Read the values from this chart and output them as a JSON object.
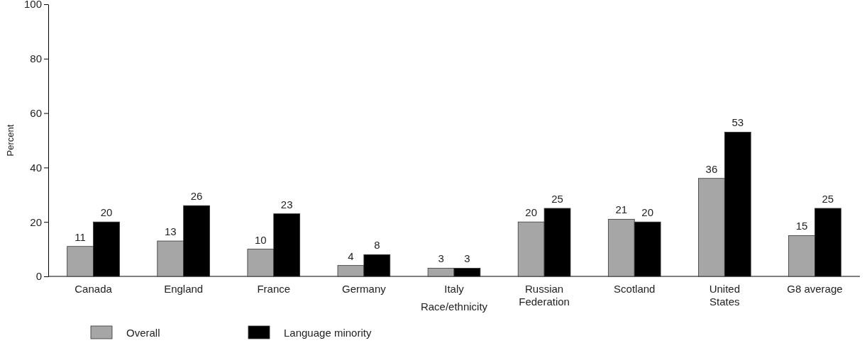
{
  "chart_data": {
    "type": "bar",
    "xlabel": "Race/ethnicity",
    "ylabel": "Percent",
    "categories": [
      "Canada",
      "England",
      "France",
      "Germany",
      "Italy",
      "Russian Federation",
      "Scotland",
      "United States",
      "G8 average"
    ],
    "series": [
      {
        "name": "Overall",
        "color": "#a6a6a6",
        "values": [
          11,
          13,
          10,
          4,
          3,
          20,
          21,
          36,
          15
        ]
      },
      {
        "name": "Language minority",
        "color": "#000000",
        "values": [
          20,
          26,
          23,
          8,
          3,
          25,
          20,
          53,
          25
        ]
      }
    ],
    "ylim": [
      0,
      100
    ],
    "yticks": [
      0,
      20,
      40,
      60,
      80,
      100
    ],
    "grid": false,
    "legend": "bottom left",
    "data_labels": true
  }
}
